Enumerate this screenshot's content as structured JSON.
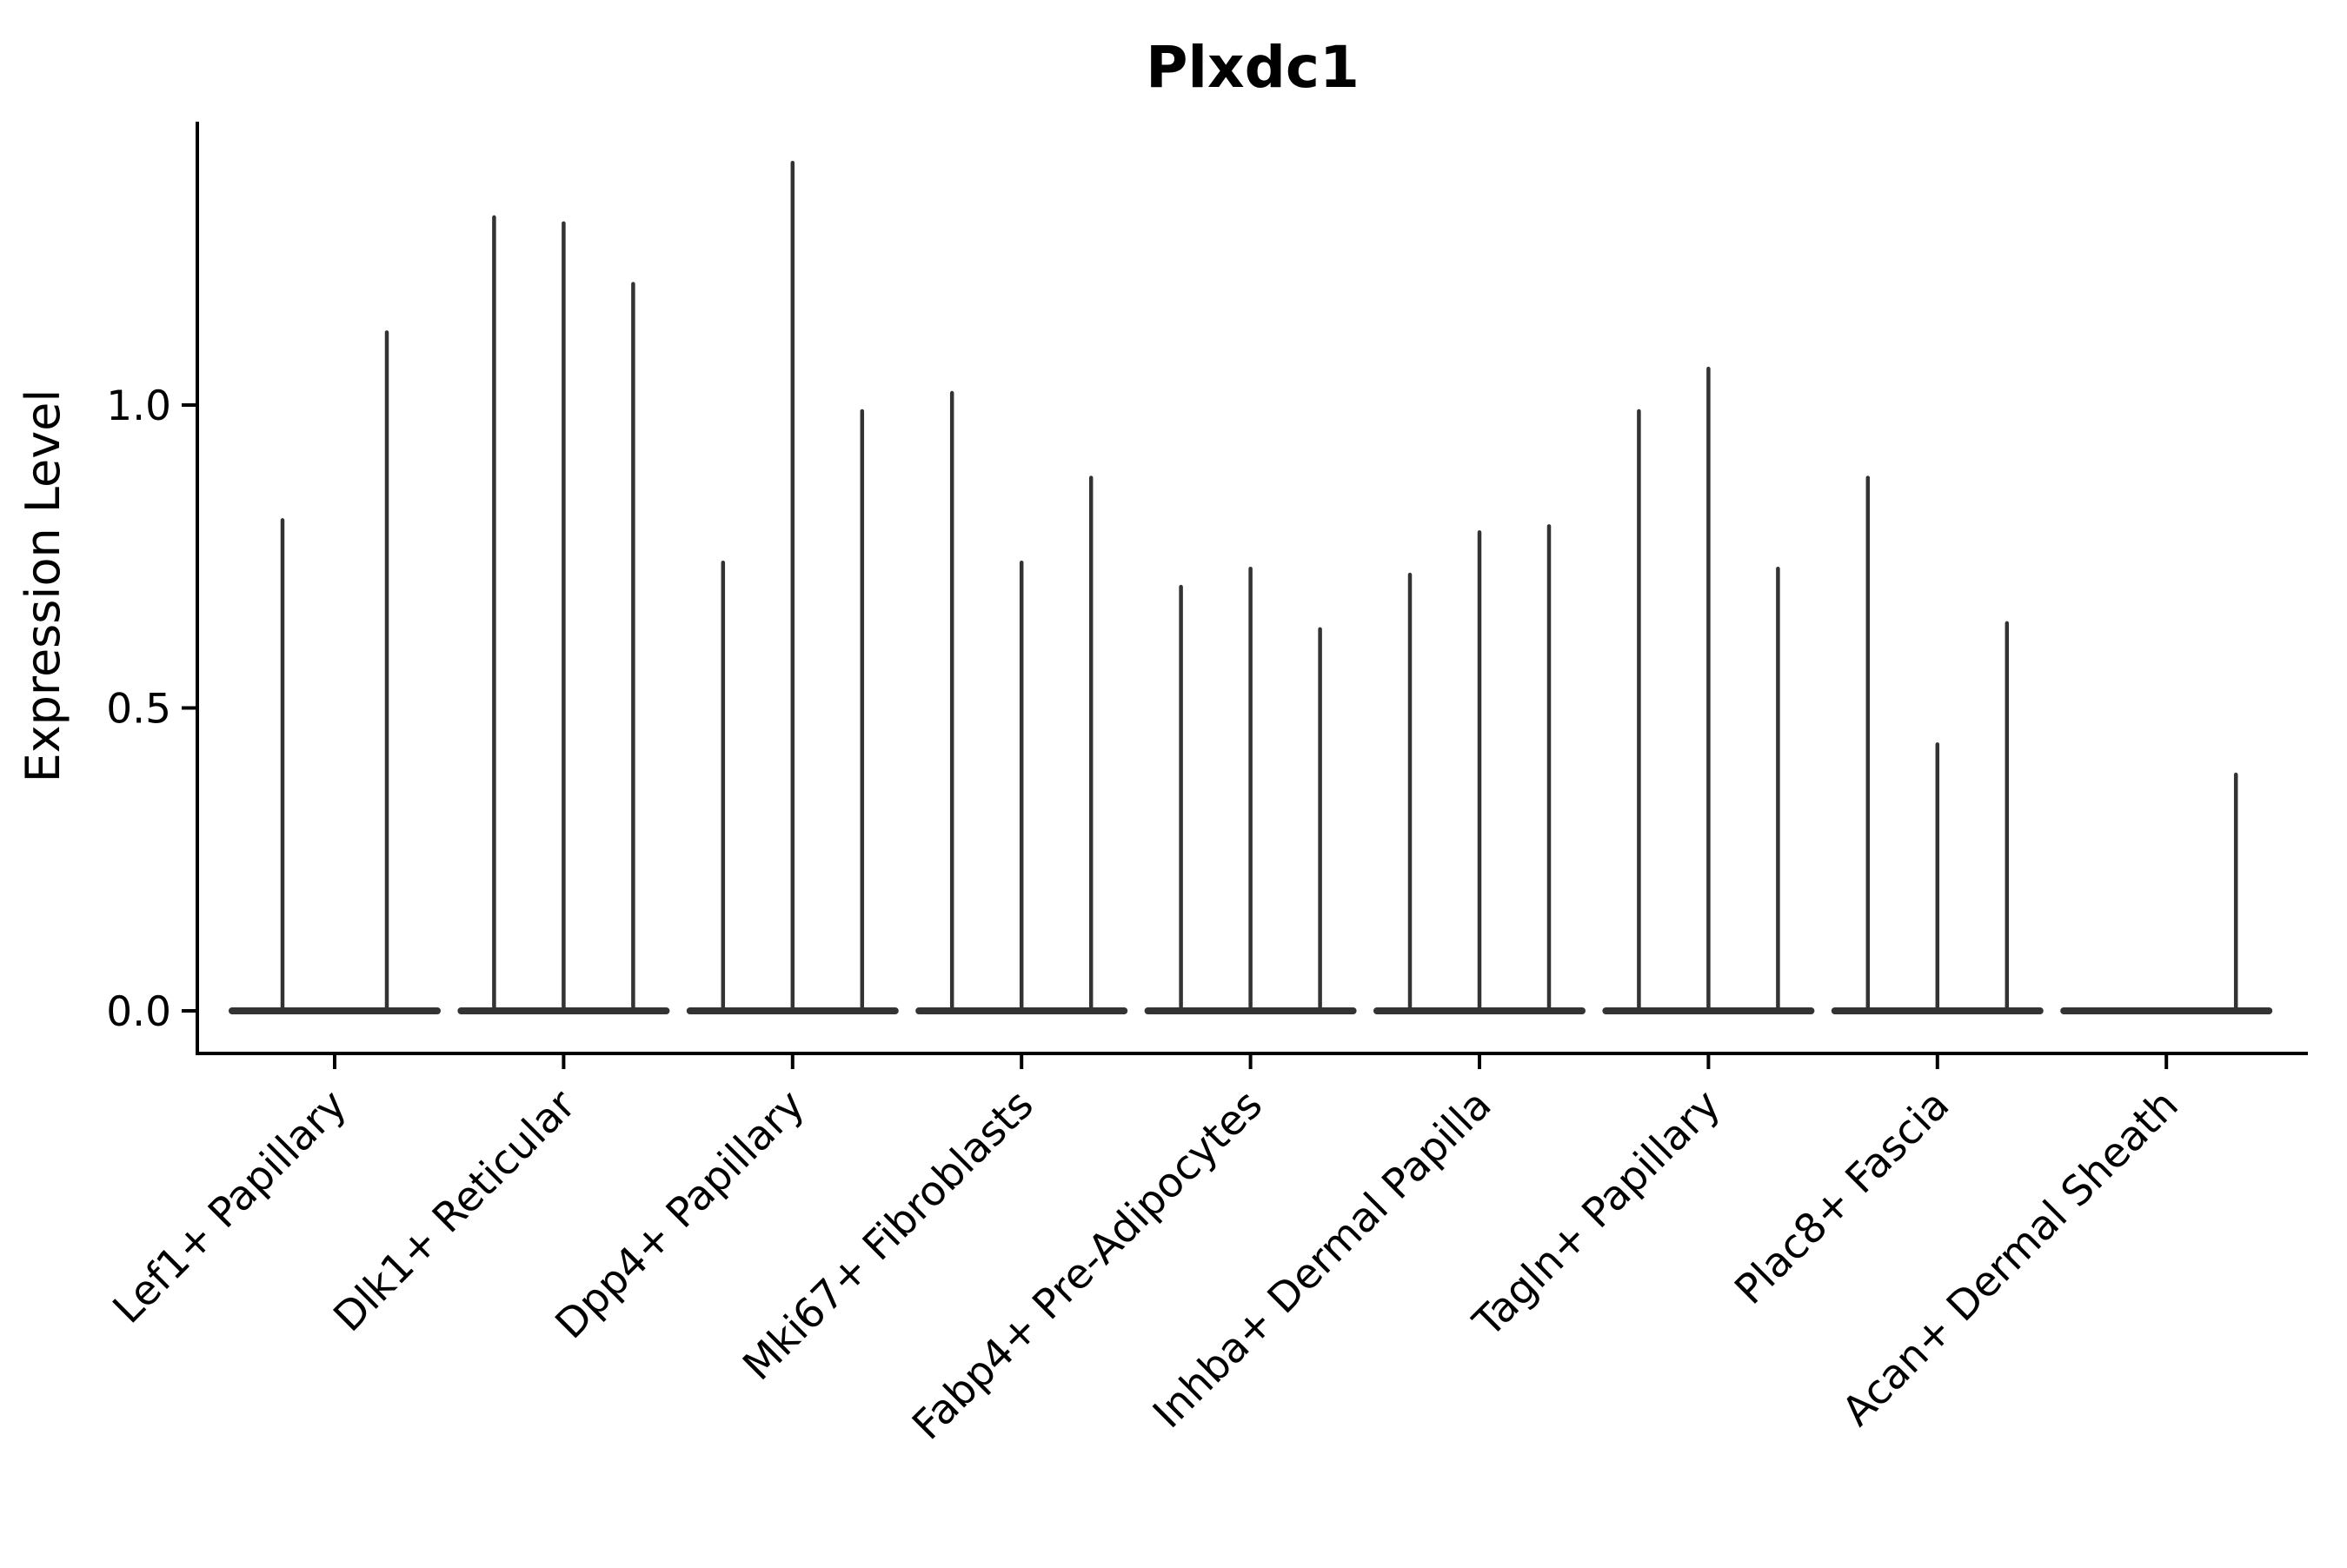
{
  "figure_title": "Plxdc1",
  "colors": {
    "violin_stroke": "#333333",
    "axis": "#000000",
    "background": "#ffffff"
  },
  "chart_data": {
    "type": "violin",
    "title": "Plxdc1",
    "xlabel": "",
    "ylabel": "Expression Level",
    "ytick_labels": [
      "0.0",
      "0.5",
      "1.0"
    ],
    "ytick_values": [
      0.0,
      0.5,
      1.0
    ],
    "ylim": [
      -0.07,
      1.47
    ],
    "grid": "off",
    "legend": "none",
    "categories": [
      "Lef1+ Papillary",
      "Dlk1+ Reticular",
      "Dpp4+ Papillary",
      "Mki67+ Fibroblasts",
      "Fabp4+ Pre-Adipocytes",
      "Inhba+ Dermal Papilla",
      "Tagln+ Papillary",
      "Plac8+ Fascia",
      "Acan+ Dermal Sheath"
    ],
    "description": "Each category shows a flat violin base at expression 0 with thin spikes; spike offset is the dodge position within the group (px from group center), value is the maximum expression level reached.",
    "groups": [
      {
        "label": "Lef1+ Papillary",
        "spikes": [
          {
            "offset": -60,
            "value": 0.81
          },
          {
            "offset": 60,
            "value": 1.12
          }
        ]
      },
      {
        "label": "Dlk1+ Reticular",
        "spikes": [
          {
            "offset": -80,
            "value": 1.31
          },
          {
            "offset": 0,
            "value": 1.3
          },
          {
            "offset": 80,
            "value": 1.2
          }
        ]
      },
      {
        "label": "Dpp4+ Papillary",
        "spikes": [
          {
            "offset": -80,
            "value": 0.74
          },
          {
            "offset": 0,
            "value": 1.4
          },
          {
            "offset": 80,
            "value": 0.99
          }
        ]
      },
      {
        "label": "Mki67+ Fibroblasts",
        "spikes": [
          {
            "offset": -80,
            "value": 1.02
          },
          {
            "offset": 0,
            "value": 0.74
          },
          {
            "offset": 80,
            "value": 0.88
          }
        ]
      },
      {
        "label": "Fabp4+ Pre-Adipocytes",
        "spikes": [
          {
            "offset": -80,
            "value": 0.7
          },
          {
            "offset": 0,
            "value": 0.73
          },
          {
            "offset": 80,
            "value": 0.63
          }
        ]
      },
      {
        "label": "Inhba+ Dermal Papilla",
        "spikes": [
          {
            "offset": -80,
            "value": 0.72
          },
          {
            "offset": 0,
            "value": 0.79
          },
          {
            "offset": 80,
            "value": 0.8
          }
        ]
      },
      {
        "label": "Tagln+ Papillary",
        "spikes": [
          {
            "offset": -80,
            "value": 0.99
          },
          {
            "offset": 0,
            "value": 1.06
          },
          {
            "offset": 80,
            "value": 0.73
          }
        ]
      },
      {
        "label": "Plac8+ Fascia",
        "spikes": [
          {
            "offset": -80,
            "value": 0.88
          },
          {
            "offset": 0,
            "value": 0.44
          },
          {
            "offset": 80,
            "value": 0.64
          }
        ]
      },
      {
        "label": "Acan+ Dermal Sheath",
        "spikes": [
          {
            "offset": 80,
            "value": 0.39
          }
        ]
      }
    ]
  }
}
